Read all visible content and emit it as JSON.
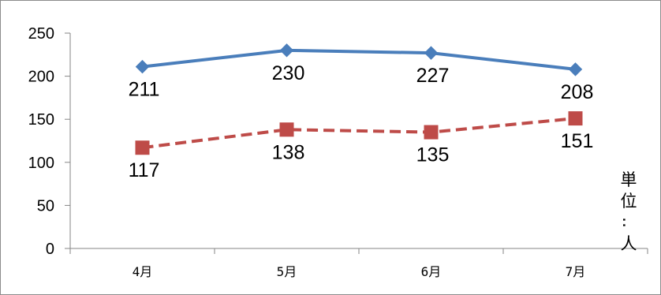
{
  "chart_data": {
    "type": "line",
    "categories": [
      "4月",
      "5月",
      "6月",
      "7月"
    ],
    "series": [
      {
        "values": [
          211,
          230,
          227,
          208
        ],
        "color": "#4a7ebb",
        "dash": "solid",
        "marker": "diamond"
      },
      {
        "values": [
          117,
          138,
          135,
          151
        ],
        "color": "#be4b48",
        "dash": "dashed",
        "marker": "square"
      }
    ],
    "ylim": [
      0,
      250
    ],
    "yticks": [
      0,
      50,
      100,
      150,
      200,
      250
    ],
    "ylabel": "単位：人",
    "grid": false,
    "legend": "none"
  }
}
